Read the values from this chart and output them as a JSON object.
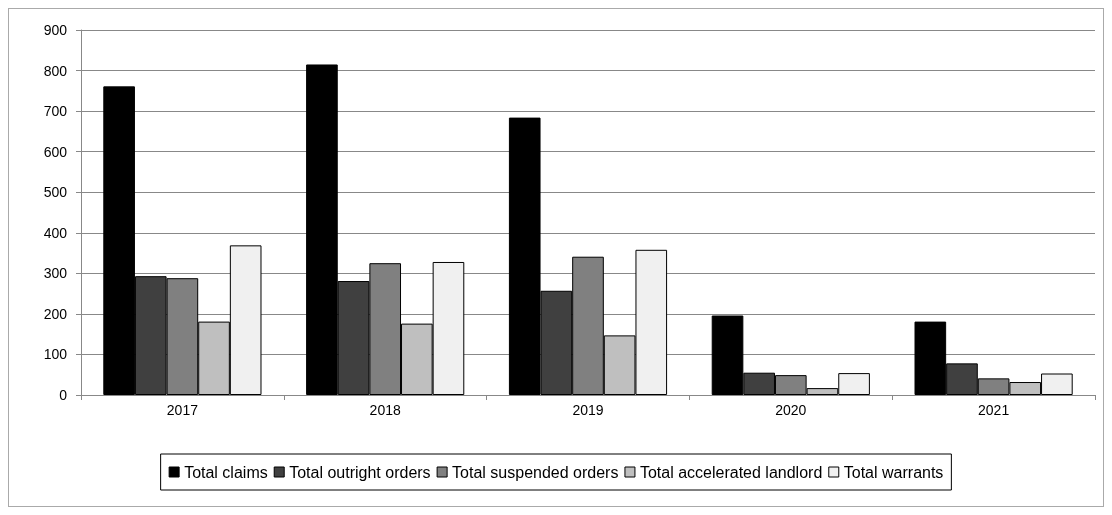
{
  "chart_data": {
    "type": "bar",
    "categories": [
      "2017",
      "2018",
      "2019",
      "2020",
      "2021"
    ],
    "series": [
      {
        "name": "Total claims",
        "color": "#000000",
        "values": [
          761,
          815,
          684,
          196,
          181
        ]
      },
      {
        "name": "Total outright orders",
        "color": "#404040",
        "values": [
          293,
          281,
          257,
          55,
          78
        ]
      },
      {
        "name": "Total suspended orders",
        "color": "#808080",
        "values": [
          288,
          325,
          341,
          49,
          41
        ]
      },
      {
        "name": "Total accelerated landlord",
        "color": "#bfbfbf",
        "values": [
          181,
          176,
          147,
          17,
          32
        ]
      },
      {
        "name": "Total warrants",
        "color": "#f0f0f0",
        "values": [
          369,
          328,
          358,
          54,
          53
        ]
      }
    ],
    "ylim": [
      0,
      900
    ],
    "yticks": [
      0,
      100,
      200,
      300,
      400,
      500,
      600,
      700,
      800,
      900
    ],
    "grid": "y",
    "legend": "bottom"
  }
}
